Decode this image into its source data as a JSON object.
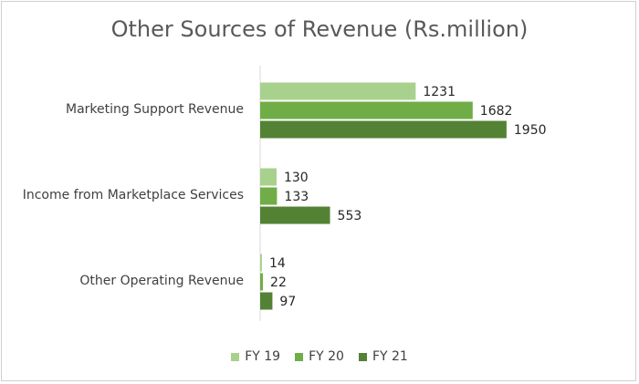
{
  "chart_data": {
    "type": "bar",
    "orientation": "horizontal",
    "title": "Other Sources of Revenue (Rs.million)",
    "xlabel": "",
    "ylabel": "",
    "xlim": [
      0,
      2000
    ],
    "grid": false,
    "legend_position": "bottom",
    "categories": [
      "Marketing Support Revenue",
      "Income from Marketplace Services",
      "Other Operating Revenue"
    ],
    "series": [
      {
        "name": "FY 19",
        "color": "#a9d18e",
        "values": [
          1231,
          130,
          14
        ]
      },
      {
        "name": "FY 20",
        "color": "#70ad47",
        "values": [
          1682,
          133,
          22
        ]
      },
      {
        "name": "FY 21",
        "color": "#548235",
        "values": [
          1950,
          553,
          97
        ]
      }
    ]
  }
}
